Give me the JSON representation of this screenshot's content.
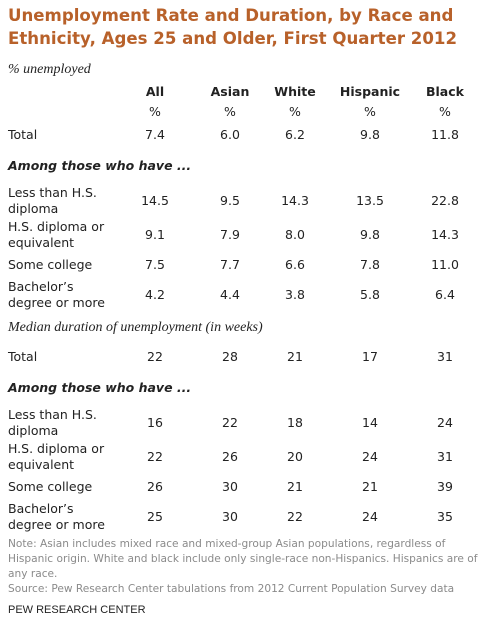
{
  "title": "Unemployment Rate and Duration, by Race and Ethnicity, Ages 25 and Older, First Quarter 2012",
  "sections": [
    {
      "heading": "% unemployed",
      "columns": [
        "All",
        "Asian",
        "White",
        "Hispanic",
        "Black"
      ],
      "units": [
        "%",
        "%",
        "%",
        "%",
        "%"
      ],
      "rows": [
        {
          "label": "Total",
          "values": [
            "7.4",
            "6.0",
            "6.2",
            "9.8",
            "11.8"
          ]
        },
        {
          "label": "Among those who have ..."
        },
        {
          "label": "Less than H.S. diploma",
          "values": [
            "14.5",
            "9.5",
            "14.3",
            "13.5",
            "22.8"
          ]
        },
        {
          "label": "H.S. diploma or equivalent",
          "values": [
            "9.1",
            "7.9",
            "8.0",
            "9.8",
            "14.3"
          ]
        },
        {
          "label": "Some college",
          "values": [
            "7.5",
            "7.7",
            "6.6",
            "7.8",
            "11.0"
          ]
        },
        {
          "label": "Bachelor’s degree or more",
          "values": [
            "4.2",
            "4.4",
            "3.8",
            "5.8",
            "6.4"
          ]
        }
      ]
    },
    {
      "heading": "Median duration of unemployment (in weeks)",
      "rows": [
        {
          "label": "Total",
          "values": [
            "22",
            "28",
            "21",
            "17",
            "31"
          ]
        },
        {
          "label": "Among those who have ..."
        },
        {
          "label": "Less than H.S. diploma",
          "values": [
            "16",
            "22",
            "18",
            "14",
            "24"
          ]
        },
        {
          "label": "H.S. diploma or equivalent",
          "values": [
            "22",
            "26",
            "20",
            "24",
            "31"
          ]
        },
        {
          "label": "Some college",
          "values": [
            "26",
            "30",
            "21",
            "21",
            "39"
          ]
        },
        {
          "label": "Bachelor’s degree or more",
          "values": [
            "25",
            "30",
            "22",
            "24",
            "35"
          ]
        }
      ]
    }
  ],
  "note": "Note: Asian includes mixed race and mixed-group Asian populations, regardless of Hispanic origin. White and black include only single-race non-Hispanics. Hispanics are of any race.",
  "source": "Source: Pew Research Center tabulations from 2012 Current Population Survey data",
  "footer": "PEW RESEARCH CENTER"
}
